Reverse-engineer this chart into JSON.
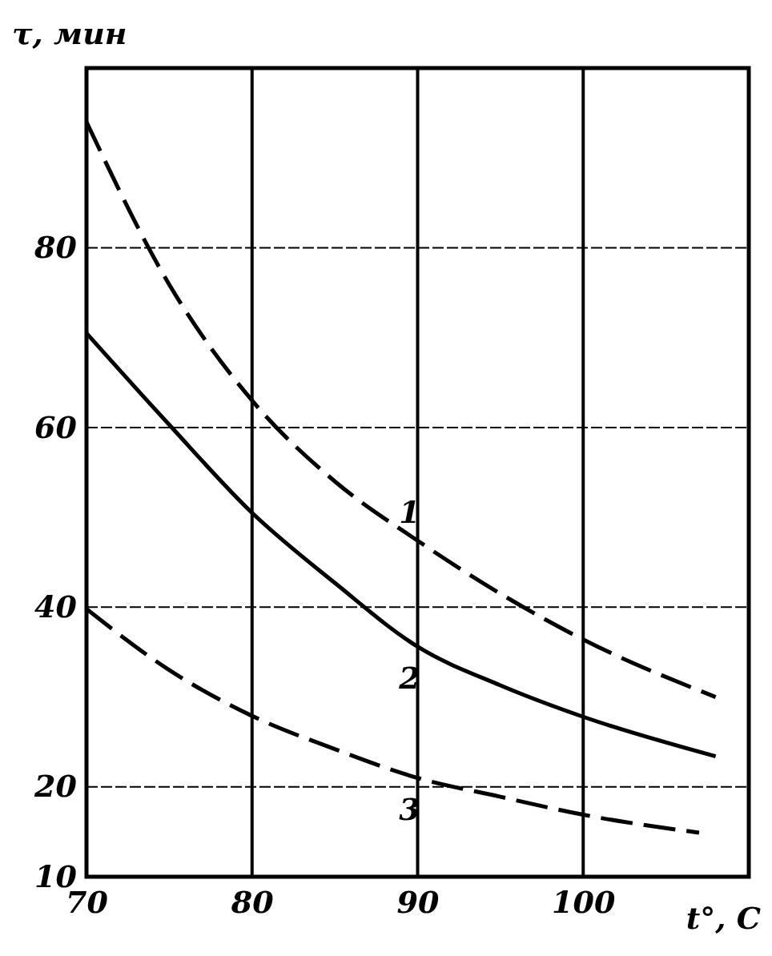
{
  "chart_data": {
    "type": "line",
    "xlabel": "t°, C",
    "ylabel": "τ, мин",
    "xlim": [
      70,
      110
    ],
    "ylim": [
      10,
      100
    ],
    "xticks": [
      70,
      80,
      90,
      100
    ],
    "yticks": [
      10,
      20,
      40,
      60,
      80
    ],
    "grid": true,
    "series": [
      {
        "name": "1",
        "color": "#000000",
        "line_style": "dashed",
        "x": [
          70,
          75,
          80,
          85,
          90,
          95,
          100,
          108
        ],
        "values": [
          94,
          75.9,
          63,
          54,
          47.4,
          41.5,
          36.4,
          30
        ]
      },
      {
        "name": "2",
        "color": "#000000",
        "line_style": "solid",
        "x": [
          70,
          75,
          80,
          85,
          90,
          95,
          100,
          108
        ],
        "values": [
          70.5,
          60.3,
          50.5,
          42.7,
          35.6,
          31.3,
          27.8,
          23.4
        ]
      },
      {
        "name": "3",
        "color": "#000000",
        "line_style": "dashed",
        "x": [
          70,
          75,
          80,
          85,
          90,
          95,
          100,
          107
        ],
        "values": [
          39.8,
          33,
          27.9,
          24.2,
          21,
          18.9,
          16.9,
          14.9
        ]
      }
    ]
  }
}
